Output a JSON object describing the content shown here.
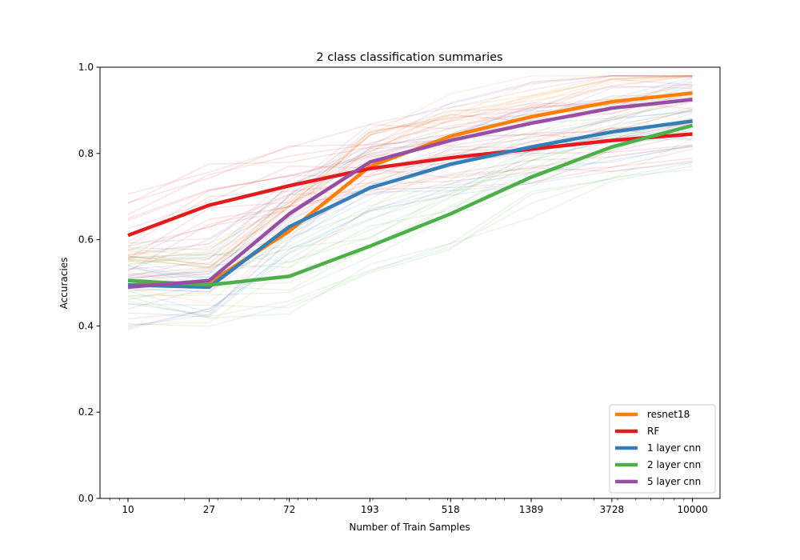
{
  "chart_data": {
    "type": "line",
    "title": "2 class classification summaries",
    "xlabel": "Number of Train Samples",
    "ylabel": "Accuracies",
    "x_scale": "log",
    "x": [
      10,
      27,
      72,
      193,
      518,
      1389,
      3728,
      10000
    ],
    "x_tick_labels": [
      "10",
      "27",
      "72",
      "193",
      "518",
      "1389",
      "3728",
      "10000"
    ],
    "xlim": [
      7.1,
      14000
    ],
    "ylim": [
      0.0,
      1.0
    ],
    "y_ticks": [
      0.0,
      0.2,
      0.4,
      0.6,
      0.8,
      1.0
    ],
    "y_tick_labels": [
      "0.0",
      "0.2",
      "0.4",
      "0.6",
      "0.8",
      "1.0"
    ],
    "grid": false,
    "legend_position": "lower-right",
    "series": [
      {
        "name": "resnet18",
        "color": "#ff7f00",
        "values": [
          0.495,
          0.5,
          0.62,
          0.77,
          0.84,
          0.885,
          0.92,
          0.94
        ]
      },
      {
        "name": "RF",
        "color": "#e41a1c",
        "values": [
          0.61,
          0.68,
          0.725,
          0.765,
          0.79,
          0.81,
          0.83,
          0.845
        ]
      },
      {
        "name": "1 layer cnn",
        "color": "#377eb8",
        "values": [
          0.495,
          0.49,
          0.63,
          0.72,
          0.775,
          0.815,
          0.85,
          0.875
        ]
      },
      {
        "name": "2 layer cnn",
        "color": "#4daf4a",
        "values": [
          0.505,
          0.495,
          0.515,
          0.585,
          0.66,
          0.745,
          0.815,
          0.865
        ]
      },
      {
        "name": "5 layer cnn",
        "color": "#984ea3",
        "values": [
          0.49,
          0.505,
          0.66,
          0.78,
          0.83,
          0.87,
          0.905,
          0.925
        ]
      }
    ]
  }
}
